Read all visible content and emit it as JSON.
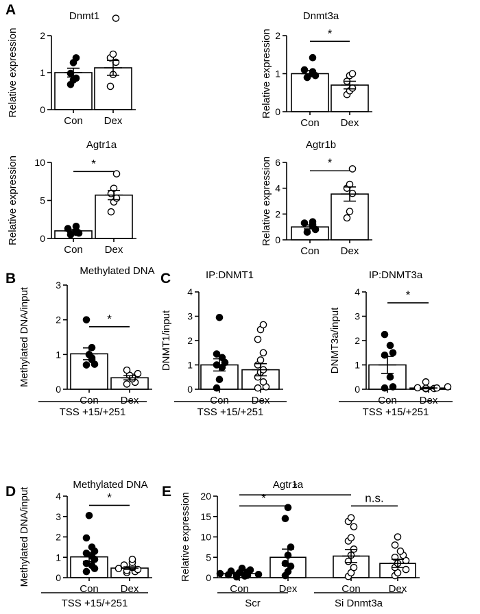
{
  "panel_labels": [
    "A",
    "B",
    "C",
    "D",
    "E"
  ],
  "chart_data": [
    {
      "id": "a1",
      "type": "bar",
      "panel": "A",
      "title": "Dnmt1",
      "ylabel": "Relative expression",
      "ylim": [
        0,
        2
      ],
      "yticks": [
        0,
        1,
        2
      ],
      "categories": [
        "Con",
        "Dex"
      ],
      "values": [
        1.0,
        1.13
      ],
      "errors": [
        0.12,
        0.2
      ],
      "filled": [
        true,
        false
      ],
      "points": [
        [
          0.68,
          0.8,
          0.85,
          0.98,
          1.27,
          1.4
        ],
        [
          0.63,
          0.95,
          1.28,
          1.4,
          1.5,
          2.47
        ]
      ],
      "significance": [],
      "group_labels": []
    },
    {
      "id": "a2",
      "type": "bar",
      "panel": "A",
      "title": "Dnmt3a",
      "ylabel": "Relative expression",
      "ylim": [
        0,
        2
      ],
      "yticks": [
        0,
        1,
        2
      ],
      "categories": [
        "Con",
        "Dex"
      ],
      "values": [
        1.0,
        0.7
      ],
      "errors": [
        0.08,
        0.1
      ],
      "filled": [
        true,
        false
      ],
      "points": [
        [
          0.9,
          0.95,
          1.0,
          1.05,
          1.1,
          1.42
        ],
        [
          0.45,
          0.55,
          0.62,
          0.8,
          0.95,
          1.0
        ]
      ],
      "significance": [
        {
          "from": 0,
          "to": 1,
          "y": 1.85,
          "label": "*"
        }
      ],
      "group_labels": []
    },
    {
      "id": "a3",
      "type": "bar",
      "panel": "A",
      "title": "Agtr1a",
      "ylabel": "Relative expression",
      "ylim": [
        0,
        10
      ],
      "yticks": [
        0,
        5,
        10
      ],
      "categories": [
        "Con",
        "Dex"
      ],
      "values": [
        1.0,
        5.7
      ],
      "errors": [
        0.2,
        0.6
      ],
      "filled": [
        true,
        false
      ],
      "points": [
        [
          0.5,
          0.7,
          0.8,
          1.0,
          1.3,
          1.6
        ],
        [
          3.5,
          4.8,
          5.3,
          5.9,
          6.6,
          8.5
        ]
      ],
      "significance": [
        {
          "from": 0,
          "to": 1,
          "y": 8.8,
          "label": "*"
        }
      ],
      "group_labels": []
    },
    {
      "id": "a4",
      "type": "bar",
      "panel": "A",
      "title": "Agtr1b",
      "ylabel": "Relative expression",
      "ylim": [
        0,
        6
      ],
      "yticks": [
        0,
        2,
        4,
        6
      ],
      "categories": [
        "Con",
        "Dex"
      ],
      "values": [
        1.0,
        3.55
      ],
      "errors": [
        0.15,
        0.55
      ],
      "filled": [
        true,
        false
      ],
      "points": [
        [
          0.6,
          0.8,
          1.1,
          1.2,
          1.3,
          1.4
        ],
        [
          1.7,
          2.2,
          3.6,
          4.0,
          4.3,
          5.5
        ]
      ],
      "significance": [
        {
          "from": 0,
          "to": 1,
          "y": 5.35,
          "label": "*"
        }
      ],
      "group_labels": []
    },
    {
      "id": "b",
      "type": "bar",
      "panel": "B",
      "title": "Methylated DNA",
      "ylabel": "Methylated DNA/input",
      "ylim": [
        0,
        3
      ],
      "yticks": [
        0,
        1,
        2,
        3
      ],
      "categories": [
        "Con",
        "Dex"
      ],
      "values": [
        1.02,
        0.33
      ],
      "errors": [
        0.17,
        0.06
      ],
      "filled": [
        true,
        false
      ],
      "points": [
        [
          0.7,
          0.72,
          0.85,
          0.9,
          1.0,
          1.2,
          2.0
        ],
        [
          0.15,
          0.2,
          0.3,
          0.35,
          0.4,
          0.45,
          0.55
        ]
      ],
      "significance": [
        {
          "from": 0,
          "to": 1,
          "y": 1.8,
          "label": "*"
        }
      ],
      "group_labels": [
        {
          "label": "TSS +15/+251",
          "from": 0,
          "to": 1
        }
      ]
    },
    {
      "id": "c1",
      "type": "bar",
      "panel": "C",
      "title": "IP:DNMT1",
      "ylabel": "DNMT1/input",
      "ylim": [
        0,
        4
      ],
      "yticks": [
        0,
        1,
        2,
        3,
        4
      ],
      "categories": [
        "Con",
        "Dex"
      ],
      "values": [
        1.0,
        0.8
      ],
      "errors": [
        0.25,
        0.25
      ],
      "filled": [
        true,
        false
      ],
      "points": [
        [
          0.05,
          0.4,
          0.9,
          1.0,
          1.1,
          1.3,
          1.45,
          2.95
        ],
        [
          0.05,
          0.1,
          0.3,
          0.5,
          0.7,
          0.8,
          1.0,
          1.2,
          1.5,
          2.05,
          2.45,
          2.65
        ]
      ],
      "significance": [],
      "group_labels": [
        {
          "label": "TSS +15/+251",
          "from": 0,
          "to": 1
        }
      ]
    },
    {
      "id": "c2",
      "type": "bar",
      "panel": "C",
      "title": "IP:DNMT3a",
      "ylabel": "DNMT3a/input",
      "ylim": [
        0,
        4
      ],
      "yticks": [
        0,
        1,
        2,
        3,
        4
      ],
      "categories": [
        "Con",
        "Dex"
      ],
      "values": [
        1.0,
        0.05
      ],
      "errors": [
        0.35,
        0.03
      ],
      "filled": [
        true,
        false
      ],
      "points": [
        [
          0.05,
          0.1,
          0.5,
          1.4,
          1.5,
          1.8,
          2.25
        ],
        [
          0.02,
          0.03,
          0.04,
          0.05,
          0.06,
          0.1,
          0.3
        ]
      ],
      "significance": [
        {
          "from": 0,
          "to": 1,
          "y": 3.55,
          "label": "*"
        }
      ],
      "group_labels": [
        {
          "label": "TSS +15/+251",
          "from": 0,
          "to": 1
        }
      ]
    },
    {
      "id": "d",
      "type": "bar",
      "panel": "D",
      "title": "Methylated DNA",
      "ylabel": "Methylated DNA/input",
      "ylim": [
        0,
        4
      ],
      "yticks": [
        0,
        1,
        2,
        3,
        4
      ],
      "categories": [
        "Con",
        "Dex"
      ],
      "values": [
        1.02,
        0.47
      ],
      "errors": [
        0.22,
        0.06
      ],
      "filled": [
        true,
        false
      ],
      "points": [
        [
          0.3,
          0.45,
          0.6,
          0.7,
          0.9,
          1.05,
          1.2,
          1.3,
          1.5,
          1.95,
          3.05
        ],
        [
          0.25,
          0.3,
          0.35,
          0.4,
          0.45,
          0.5,
          0.55,
          0.62,
          0.75,
          0.9
        ]
      ],
      "significance": [
        {
          "from": 0,
          "to": 1,
          "y": 3.55,
          "label": "*"
        }
      ],
      "group_labels": [
        {
          "label": "TSS +15/+251",
          "from": 0,
          "to": 1
        }
      ]
    },
    {
      "id": "e",
      "type": "bar",
      "panel": "E",
      "title": "Agtr1a",
      "ylabel": "Relative expression",
      "ylim": [
        0,
        20
      ],
      "yticks": [
        0,
        5,
        10,
        15,
        20
      ],
      "categories": [
        "Con",
        "Dex",
        "Con",
        "Dex"
      ],
      "values": [
        1.0,
        5.0,
        5.3,
        3.5
      ],
      "errors": [
        0.3,
        2.0,
        1.6,
        1.0
      ],
      "filled": [
        true,
        true,
        false,
        false
      ],
      "points": [
        [
          0.2,
          0.4,
          0.5,
          0.6,
          0.7,
          0.8,
          1.0,
          1.2,
          1.4,
          1.6,
          1.9,
          2.3
        ],
        [
          0.5,
          1.5,
          2.8,
          3.5,
          5.5,
          7.5,
          14.5,
          17.2
        ],
        [
          0.3,
          1.2,
          2.5,
          4.0,
          5.5,
          7.0,
          9.0,
          9.8,
          12.5,
          13.8,
          14.7
        ],
        [
          0.5,
          1.2,
          2.0,
          2.5,
          3.5,
          4.2,
          5.0,
          5.5,
          6.5,
          8.0,
          10.0
        ]
      ],
      "significance": [
        {
          "from": 0,
          "to": 1,
          "y": 17.6,
          "label": "*"
        },
        {
          "from": 0,
          "to": 2,
          "y": 20.3,
          "label": "*"
        },
        {
          "from": 2,
          "to": 3,
          "y": 17.6,
          "label": "n.s."
        }
      ],
      "group_labels": [
        {
          "label": "Scr",
          "from": 0,
          "to": 1
        },
        {
          "label": "Si Dnmt3a",
          "from": 2,
          "to": 3
        }
      ]
    }
  ]
}
